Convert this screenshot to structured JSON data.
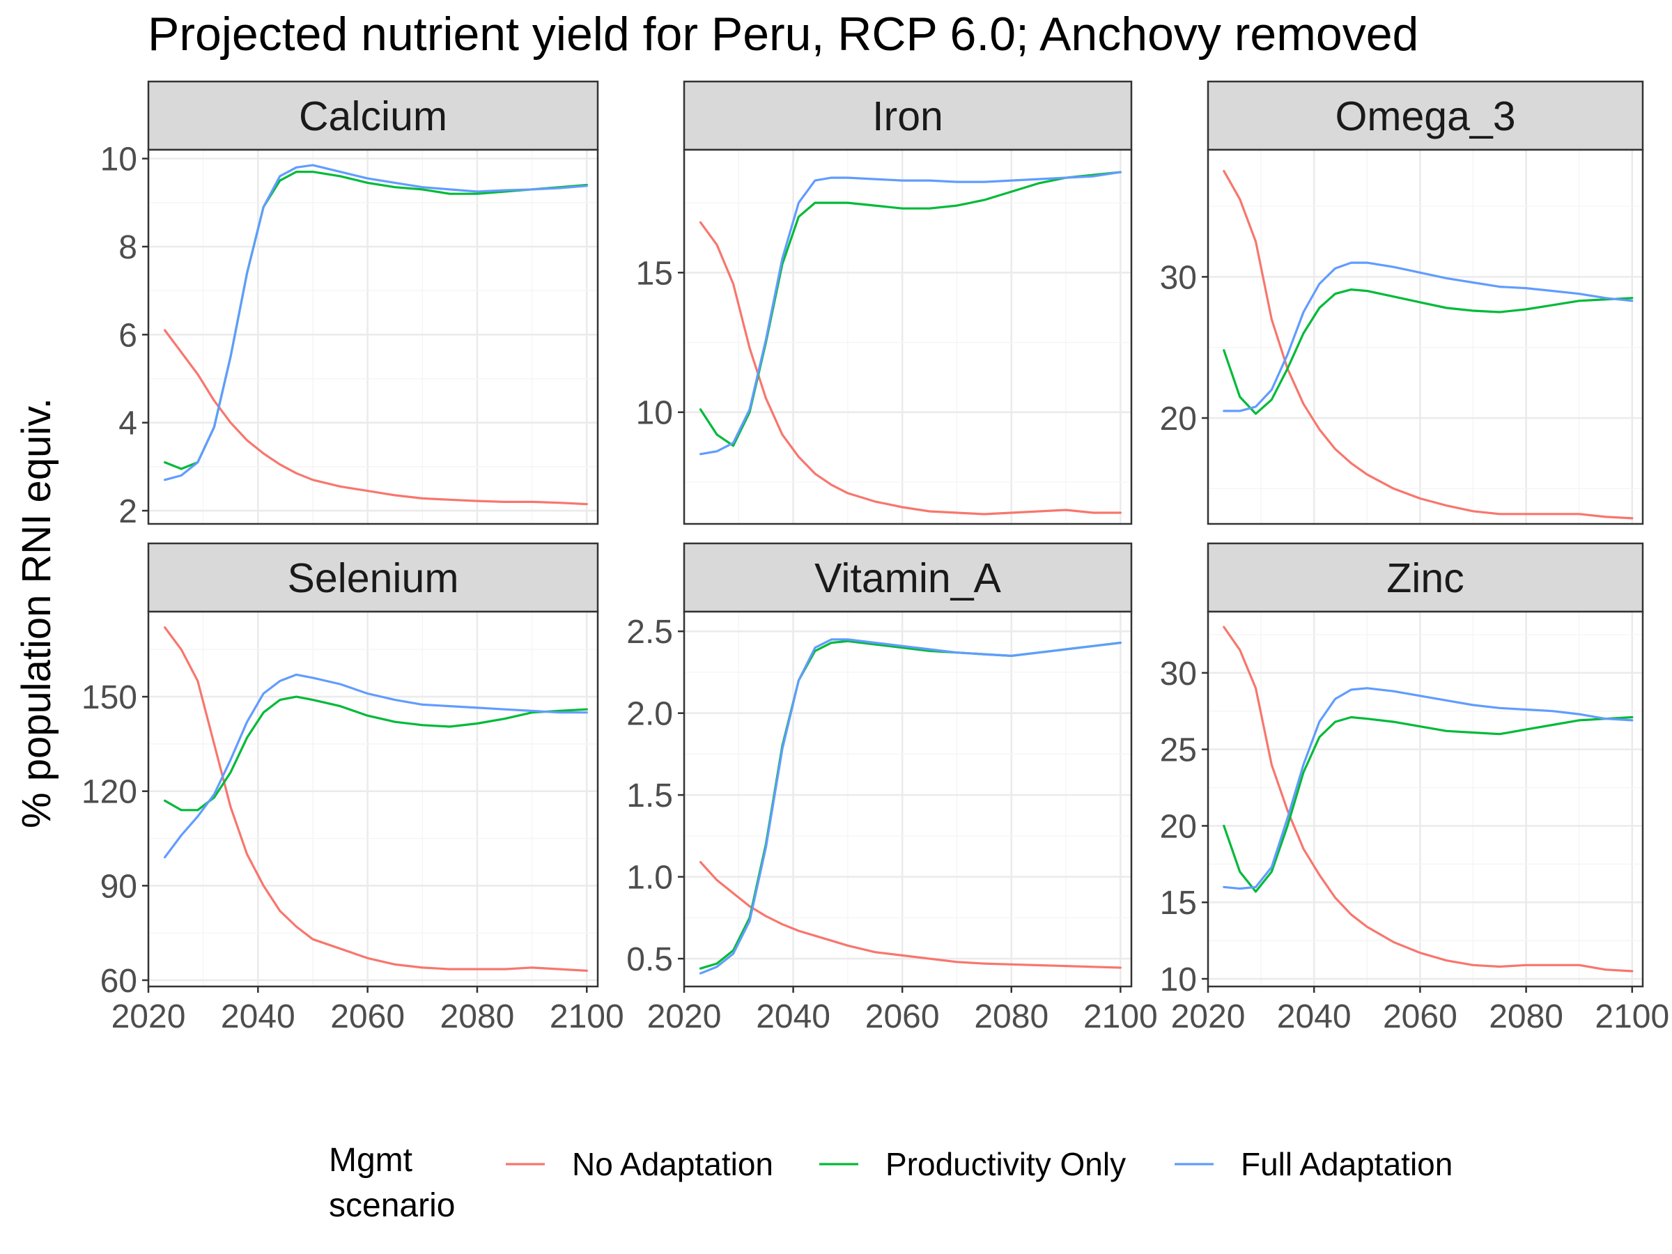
{
  "chart_data": {
    "type": "line",
    "title": "Projected nutrient yield for Peru, RCP 6.0; Anchovy removed",
    "ylabel": "% population RNI equiv.",
    "xlabel": "",
    "x_ticks": [
      2020,
      2040,
      2060,
      2080,
      2100
    ],
    "xlim": [
      2020,
      2102
    ],
    "grid": true,
    "legend": {
      "title_lines": [
        "Mgmt",
        "scenario"
      ],
      "position": "bottom",
      "entries": [
        {
          "name": "No Adaptation",
          "color": "#F8766D"
        },
        {
          "name": "Productivity Only",
          "color": "#00BA38"
        },
        {
          "name": "Full Adaptation",
          "color": "#619CFF"
        }
      ]
    },
    "x": [
      2023,
      2026,
      2029,
      2032,
      2035,
      2038,
      2041,
      2044,
      2047,
      2050,
      2055,
      2060,
      2065,
      2070,
      2075,
      2080,
      2085,
      2090,
      2095,
      2100
    ],
    "panels": [
      {
        "name": "Calcium",
        "ylim": [
          1.7,
          10.2
        ],
        "y_ticks": [
          2,
          4,
          6,
          8,
          10
        ],
        "series": [
          {
            "name": "No Adaptation",
            "values": [
              6.1,
              5.6,
              5.1,
              4.5,
              4.0,
              3.6,
              3.3,
              3.05,
              2.85,
              2.7,
              2.55,
              2.45,
              2.35,
              2.28,
              2.25,
              2.22,
              2.2,
              2.2,
              2.18,
              2.15
            ]
          },
          {
            "name": "Productivity Only",
            "values": [
              3.1,
              2.95,
              3.1,
              3.9,
              5.5,
              7.4,
              8.9,
              9.5,
              9.7,
              9.7,
              9.6,
              9.45,
              9.35,
              9.3,
              9.2,
              9.2,
              9.25,
              9.3,
              9.35,
              9.4
            ]
          },
          {
            "name": "Full Adaptation",
            "values": [
              2.7,
              2.8,
              3.1,
              3.9,
              5.5,
              7.4,
              8.9,
              9.6,
              9.8,
              9.85,
              9.7,
              9.55,
              9.45,
              9.35,
              9.3,
              9.25,
              9.28,
              9.3,
              9.33,
              9.38
            ]
          }
        ]
      },
      {
        "name": "Iron",
        "ylim": [
          6.0,
          19.4
        ],
        "y_ticks": [
          10,
          15
        ],
        "series": [
          {
            "name": "No Adaptation",
            "values": [
              16.8,
              16.0,
              14.6,
              12.3,
              10.5,
              9.2,
              8.4,
              7.8,
              7.4,
              7.1,
              6.8,
              6.6,
              6.45,
              6.4,
              6.35,
              6.4,
              6.45,
              6.5,
              6.4,
              6.4
            ]
          },
          {
            "name": "Productivity Only",
            "values": [
              10.1,
              9.2,
              8.8,
              10.0,
              12.5,
              15.3,
              17.0,
              17.5,
              17.5,
              17.5,
              17.4,
              17.3,
              17.3,
              17.4,
              17.6,
              17.9,
              18.2,
              18.4,
              18.5,
              18.6
            ]
          },
          {
            "name": "Full Adaptation",
            "values": [
              8.5,
              8.6,
              8.9,
              10.1,
              12.6,
              15.5,
              17.5,
              18.3,
              18.4,
              18.4,
              18.35,
              18.3,
              18.3,
              18.25,
              18.25,
              18.3,
              18.35,
              18.4,
              18.45,
              18.6
            ]
          }
        ]
      },
      {
        "name": "Omega_3",
        "ylim": [
          12.5,
          39.0
        ],
        "y_ticks": [
          20,
          30
        ],
        "series": [
          {
            "name": "No Adaptation",
            "values": [
              37.5,
              35.5,
              32.5,
              27.0,
              23.5,
              21.0,
              19.2,
              17.8,
              16.8,
              16.0,
              15.0,
              14.3,
              13.8,
              13.4,
              13.2,
              13.2,
              13.2,
              13.2,
              13.0,
              12.9
            ]
          },
          {
            "name": "Productivity Only",
            "values": [
              24.8,
              21.5,
              20.3,
              21.3,
              23.5,
              26.0,
              27.8,
              28.8,
              29.1,
              29.0,
              28.6,
              28.2,
              27.8,
              27.6,
              27.5,
              27.7,
              28.0,
              28.3,
              28.4,
              28.5
            ]
          },
          {
            "name": "Full Adaptation",
            "values": [
              20.5,
              20.5,
              20.8,
              22.0,
              24.5,
              27.5,
              29.5,
              30.6,
              31.0,
              31.0,
              30.7,
              30.3,
              29.9,
              29.6,
              29.3,
              29.2,
              29.0,
              28.8,
              28.5,
              28.3
            ]
          }
        ]
      },
      {
        "name": "Selenium",
        "ylim": [
          58,
          177
        ],
        "y_ticks": [
          60,
          90,
          120,
          150
        ],
        "series": [
          {
            "name": "No Adaptation",
            "values": [
              172,
              165,
              155,
              135,
              115,
              100,
              90,
              82,
              77,
              73,
              70,
              67,
              65,
              64,
              63.5,
              63.5,
              63.5,
              64,
              63.5,
              63
            ]
          },
          {
            "name": "Productivity Only",
            "values": [
              117,
              114,
              114,
              118,
              126,
              137,
              145,
              149,
              150,
              149,
              147,
              144,
              142,
              141,
              140.5,
              141.5,
              143,
              145,
              145.5,
              146
            ]
          },
          {
            "name": "Full Adaptation",
            "values": [
              99,
              106,
              112,
              119,
              130,
              142,
              151,
              155,
              157,
              156,
              154,
              151,
              149,
              147.5,
              147,
              146.5,
              146,
              145.5,
              145,
              145
            ]
          }
        ]
      },
      {
        "name": "Vitamin_A",
        "ylim": [
          0.33,
          2.62
        ],
        "y_ticks": [
          0.5,
          1.0,
          1.5,
          2.0,
          2.5
        ],
        "series": [
          {
            "name": "No Adaptation",
            "values": [
              1.09,
              0.98,
              0.9,
              0.82,
              0.76,
              0.71,
              0.67,
              0.64,
              0.61,
              0.58,
              0.54,
              0.52,
              0.5,
              0.48,
              0.47,
              0.465,
              0.46,
              0.455,
              0.45,
              0.445
            ]
          },
          {
            "name": "Productivity Only",
            "values": [
              0.44,
              0.47,
              0.55,
              0.75,
              1.2,
              1.8,
              2.2,
              2.38,
              2.43,
              2.44,
              2.42,
              2.4,
              2.38,
              2.37,
              2.36,
              2.35,
              2.37,
              2.39,
              2.41,
              2.43
            ]
          },
          {
            "name": "Full Adaptation",
            "values": [
              0.41,
              0.45,
              0.53,
              0.73,
              1.18,
              1.78,
              2.2,
              2.4,
              2.45,
              2.45,
              2.43,
              2.41,
              2.39,
              2.37,
              2.36,
              2.35,
              2.37,
              2.39,
              2.41,
              2.43
            ]
          }
        ]
      },
      {
        "name": "Zinc",
        "ylim": [
          9.5,
          34.0
        ],
        "y_ticks": [
          10,
          15,
          20,
          25,
          30
        ],
        "series": [
          {
            "name": "No Adaptation",
            "values": [
              33.0,
              31.5,
              29.0,
              24.0,
              21.0,
              18.5,
              16.8,
              15.3,
              14.2,
              13.4,
              12.4,
              11.7,
              11.2,
              10.9,
              10.8,
              10.9,
              10.9,
              10.9,
              10.6,
              10.5
            ]
          },
          {
            "name": "Productivity Only",
            "values": [
              20.0,
              17.0,
              15.7,
              17.0,
              20.0,
              23.5,
              25.8,
              26.8,
              27.1,
              27.0,
              26.8,
              26.5,
              26.2,
              26.1,
              26.0,
              26.3,
              26.6,
              26.9,
              27.0,
              27.1
            ]
          },
          {
            "name": "Full Adaptation",
            "values": [
              16.0,
              15.9,
              16.0,
              17.3,
              20.5,
              24.0,
              26.8,
              28.3,
              28.9,
              29.0,
              28.8,
              28.5,
              28.2,
              27.9,
              27.7,
              27.6,
              27.5,
              27.3,
              27.0,
              26.9
            ]
          }
        ]
      }
    ]
  }
}
